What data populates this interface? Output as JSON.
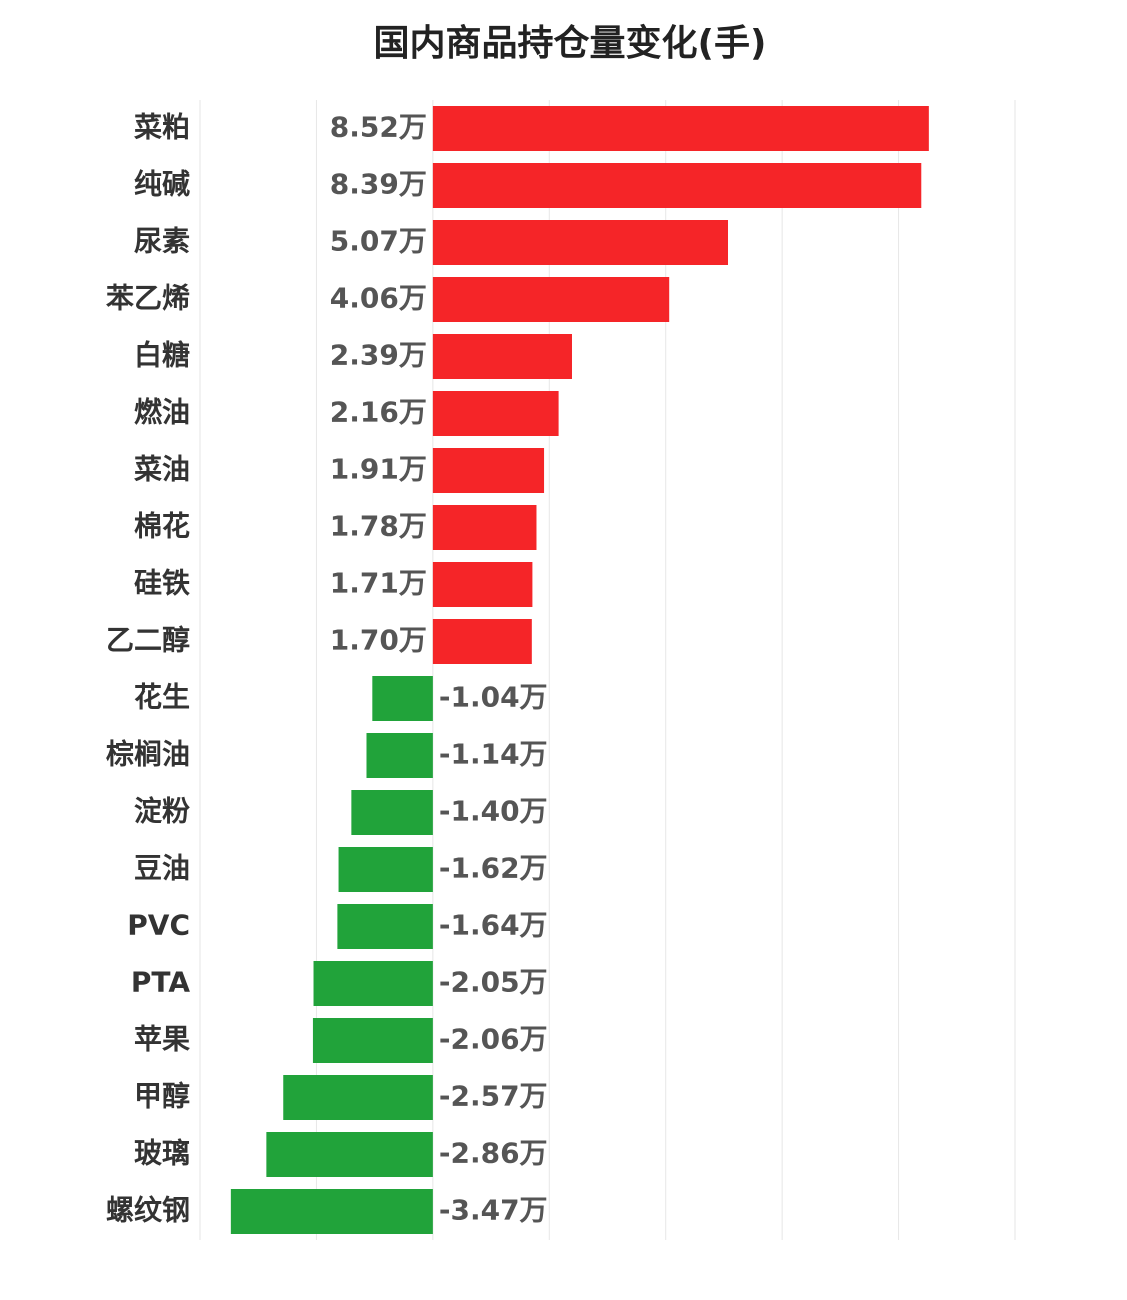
{
  "chart_data": {
    "type": "barh",
    "title": "国内商品持仓量变化(手)",
    "categories": [
      "菜粕",
      "纯碱",
      "尿素",
      "苯乙烯",
      "白糖",
      "燃油",
      "菜油",
      "棉花",
      "硅铁",
      "乙二醇",
      "花生",
      "棕榈油",
      "淀粉",
      "豆油",
      "PVC",
      "PTA",
      "苹果",
      "甲醇",
      "玻璃",
      "螺纹钢"
    ],
    "values": [
      8.52,
      8.39,
      5.07,
      4.06,
      2.39,
      2.16,
      1.91,
      1.78,
      1.71,
      1.7,
      -1.04,
      -1.14,
      -1.4,
      -1.62,
      -1.64,
      -2.05,
      -2.06,
      -2.57,
      -2.86,
      -3.47
    ],
    "value_labels": [
      "8.52万",
      "8.39万",
      "5.07万",
      "4.06万",
      "2.39万",
      "2.16万",
      "1.91万",
      "1.78万",
      "1.71万",
      "1.70万",
      "-1.04万",
      "-1.14万",
      "-1.40万",
      "-1.62万",
      "-1.64万",
      "-2.05万",
      "-2.06万",
      "-2.57万",
      "-2.86万",
      "-3.47万"
    ],
    "color": {
      "positive": "#f52528",
      "negative": "#21a33a"
    },
    "xlim": [
      -4,
      10
    ],
    "xticks": [
      -4,
      -2,
      0,
      2,
      4,
      6,
      8,
      10
    ],
    "grid": true
  }
}
